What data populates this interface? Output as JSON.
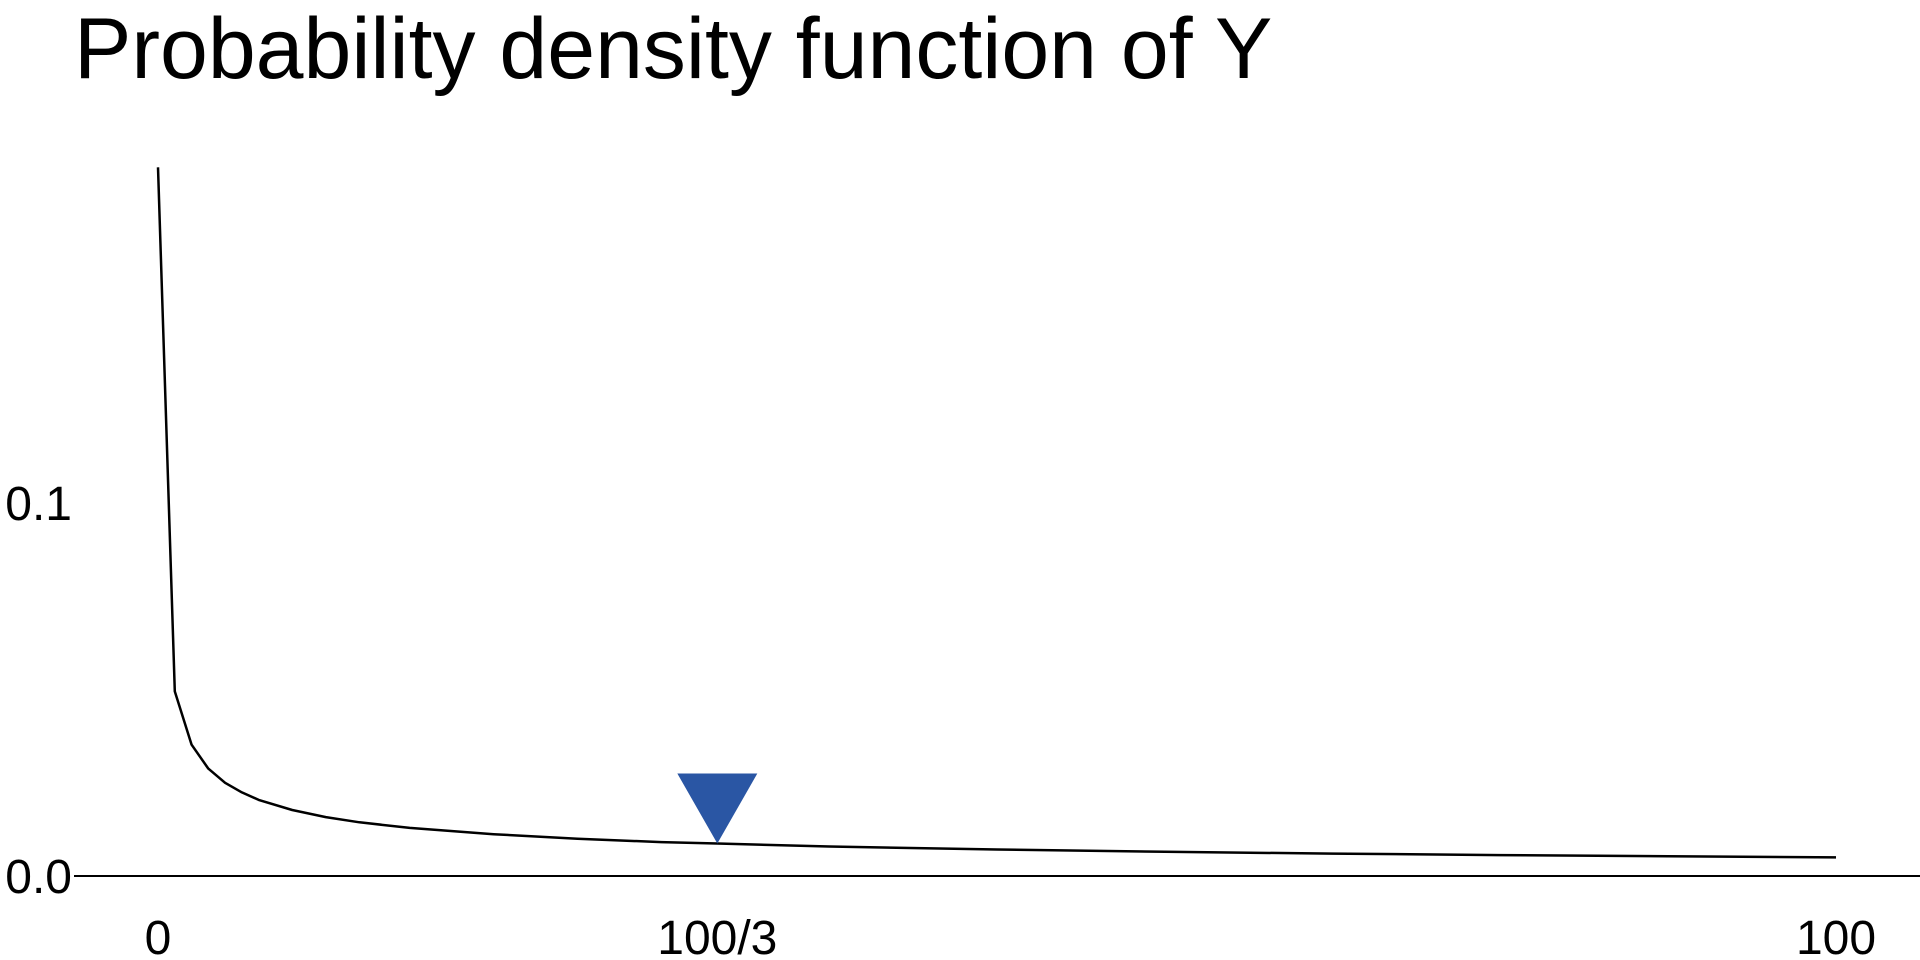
{
  "chart_data": {
    "type": "line",
    "title": "Probability density function of Y",
    "xlabel": "",
    "ylabel": "",
    "xlim": [
      0,
      100
    ],
    "ylim": [
      0,
      0.2
    ],
    "x_ticks": [
      {
        "value": 0,
        "label": "0"
      },
      {
        "value": 33.333,
        "label": "100/3"
      },
      {
        "value": 100,
        "label": "100"
      }
    ],
    "y_ticks": [
      {
        "value": 0.0,
        "label": "0.0"
      },
      {
        "value": 0.1,
        "label": "0.1"
      }
    ],
    "grid": false,
    "series": [
      {
        "color": "#000000",
        "x": [
          0,
          1,
          2,
          3,
          4,
          5,
          6,
          8,
          10,
          12,
          15,
          20,
          25,
          30,
          33.333,
          40,
          50,
          60,
          70,
          80,
          90,
          100
        ],
        "y": [
          0.19,
          0.0495,
          0.0352,
          0.0288,
          0.025,
          0.0224,
          0.0204,
          0.0177,
          0.0158,
          0.0144,
          0.0129,
          0.0112,
          0.01,
          0.0091,
          0.0087,
          0.0079,
          0.0071,
          0.0065,
          0.006,
          0.0056,
          0.0053,
          0.005
        ]
      }
    ],
    "marker": {
      "x": 33.333,
      "y": 0.0087,
      "shape": "down-triangle",
      "color": "#2a56a4"
    }
  }
}
